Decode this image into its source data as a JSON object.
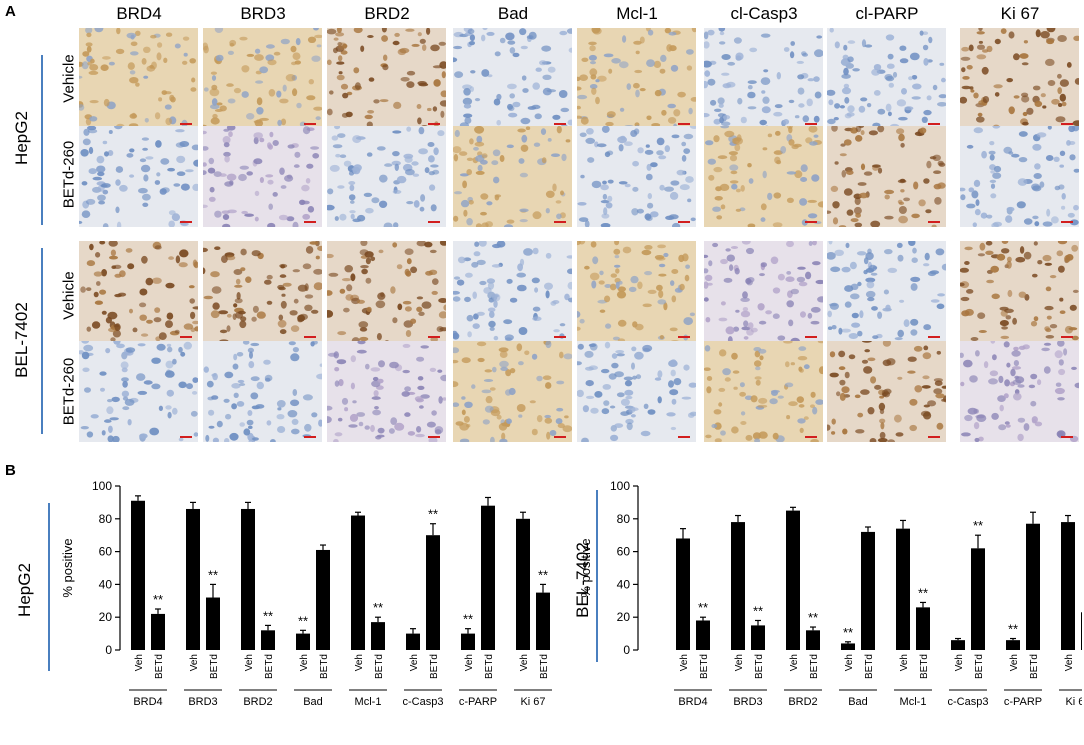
{
  "panel_a": {
    "letter": "A",
    "columns": [
      "BRD4",
      "BRD3",
      "BRD2",
      "Bad",
      "Mcl-1",
      "cl-Casp3",
      "cl-PARP",
      "Ki 67"
    ],
    "groups": [
      {
        "name": "HepG2",
        "rows": [
          "Vehicle",
          "BETd-260"
        ]
      },
      {
        "name": "BEL-7402",
        "rows": [
          "Vehicle",
          "BETd-260"
        ]
      }
    ]
  },
  "panel_b": {
    "letter": "B"
  },
  "chart_data": [
    {
      "type": "bar",
      "cell_line": "HepG2",
      "ylabel": "% positive",
      "ylim": [
        0,
        100
      ],
      "yticks": [
        0,
        20,
        40,
        60,
        80,
        100
      ],
      "categories": [
        "BRD4",
        "BRD3",
        "BRD2",
        "Bad",
        "Mcl-1",
        "c-Casp3",
        "c-PARP",
        "Ki 67"
      ],
      "bar_labels": [
        "Veh",
        "BETd"
      ],
      "series": [
        {
          "name": "Veh",
          "values": [
            91,
            86,
            86,
            10,
            82,
            10,
            10,
            80
          ],
          "errors": [
            3,
            4,
            4,
            2,
            2,
            3,
            3,
            4
          ]
        },
        {
          "name": "BETd",
          "values": [
            22,
            32,
            12,
            61,
            17,
            70,
            88,
            35
          ],
          "errors": [
            3,
            8,
            3,
            3,
            3,
            7,
            5,
            5
          ]
        }
      ],
      "significance": [
        {
          "category": "BRD4",
          "bar": "BETd",
          "label": "**"
        },
        {
          "category": "BRD3",
          "bar": "BETd",
          "label": "**"
        },
        {
          "category": "BRD2",
          "bar": "BETd",
          "label": "**"
        },
        {
          "category": "Bad",
          "bar": "Veh",
          "label": "**"
        },
        {
          "category": "Mcl-1",
          "bar": "BETd",
          "label": "**"
        },
        {
          "category": "c-Casp3",
          "bar": "BETd",
          "label": "**"
        },
        {
          "category": "c-PARP",
          "bar": "Veh",
          "label": "**"
        },
        {
          "category": "Ki 67",
          "bar": "BETd",
          "label": "**"
        }
      ]
    },
    {
      "type": "bar",
      "cell_line": "BEL-7402",
      "ylabel": "% positive",
      "ylim": [
        0,
        100
      ],
      "yticks": [
        0,
        20,
        40,
        60,
        80,
        100
      ],
      "categories": [
        "BRD4",
        "BRD3",
        "BRD2",
        "Bad",
        "Mcl-1",
        "c-Casp3",
        "c-PARP",
        "Ki 67"
      ],
      "bar_labels": [
        "Veh",
        "BETd"
      ],
      "series": [
        {
          "name": "Veh",
          "values": [
            68,
            78,
            85,
            4,
            74,
            6,
            6,
            78
          ],
          "errors": [
            6,
            4,
            2,
            1,
            5,
            1,
            1,
            4
          ]
        },
        {
          "name": "BETd",
          "values": [
            18,
            15,
            12,
            72,
            26,
            62,
            77,
            23
          ],
          "errors": [
            2,
            3,
            2,
            3,
            3,
            8,
            7,
            2
          ]
        }
      ],
      "significance": [
        {
          "category": "BRD4",
          "bar": "BETd",
          "label": "**"
        },
        {
          "category": "BRD3",
          "bar": "BETd",
          "label": "**"
        },
        {
          "category": "BRD2",
          "bar": "BETd",
          "label": "**"
        },
        {
          "category": "Bad",
          "bar": "Veh",
          "label": "**"
        },
        {
          "category": "Mcl-1",
          "bar": "BETd",
          "label": "**"
        },
        {
          "category": "c-Casp3",
          "bar": "BETd",
          "label": "**"
        },
        {
          "category": "c-PARP",
          "bar": "Veh",
          "label": "**"
        },
        {
          "category": "Ki 67",
          "bar": "BETd",
          "label": "**"
        }
      ]
    }
  ],
  "colors": {
    "hema_blue": "#7f9bc4",
    "dab_brown": "#8a5a2b",
    "light_bg": "#e9e3da",
    "bracket_blue": "#4a7fbf",
    "scale_red": "#d21e1e"
  },
  "tiles": [
    [
      "tan",
      "tan",
      "brown",
      "blue",
      "tan",
      "blue",
      "blue",
      "brown"
    ],
    [
      "blue",
      "purple",
      "blue",
      "tan",
      "blue",
      "tan",
      "brown",
      "blue"
    ],
    [
      "brown",
      "brown",
      "brown",
      "blue",
      "tan",
      "purple",
      "blue",
      "brown"
    ],
    [
      "blue",
      "blue",
      "purple",
      "tan",
      "blue",
      "tan",
      "brown",
      "purple"
    ]
  ]
}
